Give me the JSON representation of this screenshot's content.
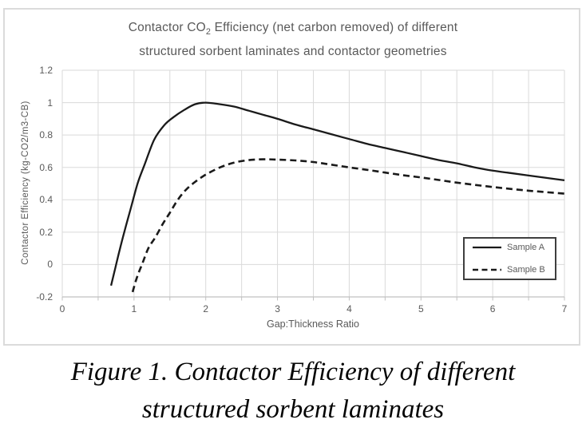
{
  "figure": {
    "title_pre": "Contactor CO",
    "title_sub": "2",
    "title_post": " Efficiency (net carbon removed) of different",
    "title_line2": "structured sorbent laminates and contactor geometries"
  },
  "caption": {
    "line1": "Figure 1. Contactor Efficiency of different",
    "line2": "structured sorbent laminates"
  },
  "colors": {
    "chart_text": "#595959",
    "gridline": "#dadada",
    "axis_line": "#c0c0c0",
    "curve": "#1a1a1a",
    "legend_border": "#3f3f3f",
    "figure_border": "#dbdbdb"
  },
  "chart_data": {
    "type": "line",
    "title": "Contactor CO2 Efficiency (net carbon removed) of different structured sorbent laminates and contactor geometries",
    "xlabel": "Gap:Thickness Ratio",
    "ylabel": "Contactor Efficiency (kg-CO2/m3-CB)",
    "xlim": [
      0,
      7
    ],
    "ylim": [
      -0.2,
      1.2
    ],
    "x_ticks": [
      0,
      1,
      2,
      3,
      4,
      5,
      6,
      7
    ],
    "x_tick_labels": [
      "0",
      "1",
      "2",
      "3",
      "4",
      "5",
      "6",
      "7"
    ],
    "y_ticks": [
      -0.2,
      0,
      0.2,
      0.4,
      0.6,
      0.8,
      1,
      1.2
    ],
    "y_tick_labels": [
      "-0.2",
      "0",
      "0.2",
      "0.4",
      "0.6",
      "0.8",
      "1",
      "1.2"
    ],
    "x_minor_grid_step": 0.5,
    "grid": true,
    "legend_position": "bottom-right",
    "series": [
      {
        "name": "Sample A",
        "style": "solid",
        "color": "#1a1a1a",
        "points": [
          [
            0.68,
            -0.13
          ],
          [
            0.74,
            -0.02
          ],
          [
            0.8,
            0.09
          ],
          [
            0.87,
            0.21
          ],
          [
            0.95,
            0.34
          ],
          [
            1.05,
            0.5
          ],
          [
            1.15,
            0.62
          ],
          [
            1.28,
            0.77
          ],
          [
            1.42,
            0.86
          ],
          [
            1.55,
            0.91
          ],
          [
            1.7,
            0.955
          ],
          [
            1.85,
            0.99
          ],
          [
            2.0,
            1.0
          ],
          [
            2.2,
            0.99
          ],
          [
            2.4,
            0.975
          ],
          [
            2.6,
            0.95
          ],
          [
            2.8,
            0.925
          ],
          [
            3.0,
            0.9
          ],
          [
            3.25,
            0.865
          ],
          [
            3.5,
            0.835
          ],
          [
            3.75,
            0.805
          ],
          [
            4.0,
            0.775
          ],
          [
            4.25,
            0.745
          ],
          [
            4.5,
            0.72
          ],
          [
            4.75,
            0.695
          ],
          [
            5.0,
            0.67
          ],
          [
            5.25,
            0.645
          ],
          [
            5.5,
            0.625
          ],
          [
            5.75,
            0.6
          ],
          [
            6.0,
            0.58
          ],
          [
            6.25,
            0.565
          ],
          [
            6.5,
            0.55
          ],
          [
            6.75,
            0.535
          ],
          [
            7.0,
            0.52
          ]
        ]
      },
      {
        "name": "Sample B",
        "style": "dashed",
        "color": "#1a1a1a",
        "points": [
          [
            0.98,
            -0.17
          ],
          [
            1.04,
            -0.08
          ],
          [
            1.12,
            0.01
          ],
          [
            1.2,
            0.1
          ],
          [
            1.3,
            0.17
          ],
          [
            1.4,
            0.25
          ],
          [
            1.5,
            0.32
          ],
          [
            1.61,
            0.4
          ],
          [
            1.72,
            0.46
          ],
          [
            1.85,
            0.51
          ],
          [
            2.0,
            0.555
          ],
          [
            2.2,
            0.6
          ],
          [
            2.4,
            0.63
          ],
          [
            2.6,
            0.645
          ],
          [
            2.8,
            0.65
          ],
          [
            3.0,
            0.648
          ],
          [
            3.25,
            0.643
          ],
          [
            3.5,
            0.633
          ],
          [
            3.75,
            0.617
          ],
          [
            4.0,
            0.6
          ],
          [
            4.25,
            0.585
          ],
          [
            4.5,
            0.568
          ],
          [
            4.75,
            0.552
          ],
          [
            5.0,
            0.538
          ],
          [
            5.25,
            0.522
          ],
          [
            5.5,
            0.506
          ],
          [
            5.75,
            0.492
          ],
          [
            6.0,
            0.479
          ],
          [
            6.25,
            0.467
          ],
          [
            6.5,
            0.456
          ],
          [
            6.75,
            0.447
          ],
          [
            7.0,
            0.438
          ]
        ]
      }
    ]
  }
}
